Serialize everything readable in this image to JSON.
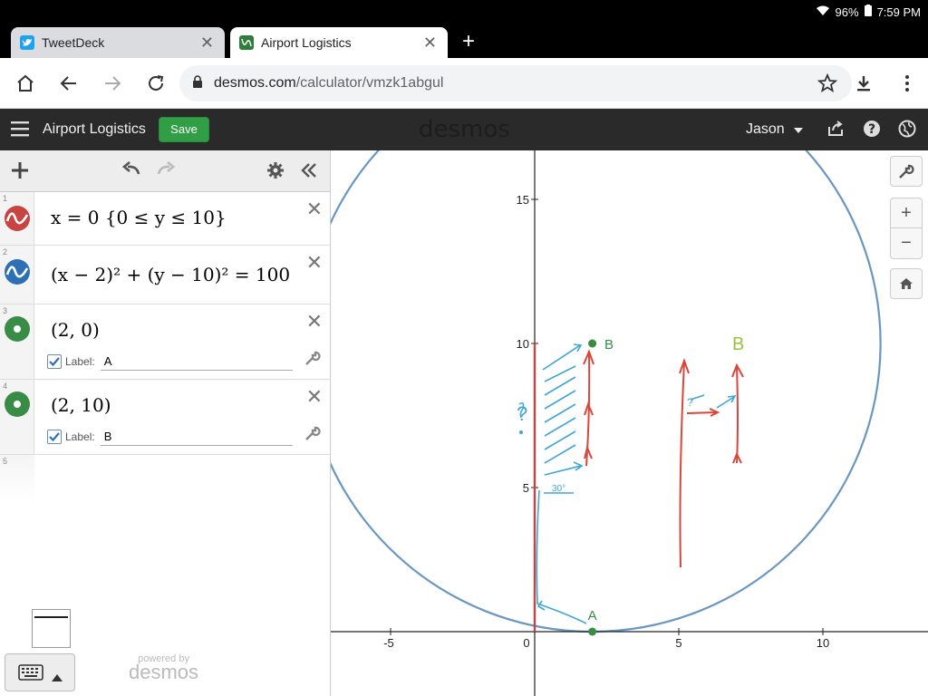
{
  "status_bar": {
    "battery": "96%",
    "time": "7:59 PM"
  },
  "browser": {
    "tabs": [
      {
        "title": "TweetDeck",
        "active": false
      },
      {
        "title": "Airport Logistics",
        "active": true
      }
    ],
    "url_host": "desmos.com",
    "url_path": "/calculator/vmzk1abgul"
  },
  "desmos": {
    "graph_title": "Airport Logistics",
    "save_label": "Save",
    "logo": "desmos",
    "user": "Jason",
    "powered_by": "powered by",
    "powered_logo": "desmos"
  },
  "expressions": [
    {
      "num": "1",
      "color": "#c74440",
      "kind": "curve",
      "latex": "x = 0 {0 ≤ y ≤ 10}"
    },
    {
      "num": "2",
      "color": "#2d70b3",
      "kind": "curve",
      "latex": "(x − 2)² + (y − 10)² = 100"
    },
    {
      "num": "3",
      "color": "#388c46",
      "kind": "point",
      "latex": "(2, 0)",
      "label_caption": "Label:",
      "label_value": "A"
    },
    {
      "num": "4",
      "color": "#388c46",
      "kind": "point",
      "latex": "(2, 10)",
      "label_caption": "Label:",
      "label_value": "B"
    },
    {
      "num": "5"
    }
  ],
  "graph": {
    "x_ticks": [
      "-5",
      "0",
      "5",
      "10"
    ],
    "y_ticks": [
      "5",
      "10",
      "15"
    ],
    "point_labels": [
      "A",
      "B"
    ],
    "sketch_text": [
      "?",
      "B",
      "?",
      "30°"
    ]
  }
}
